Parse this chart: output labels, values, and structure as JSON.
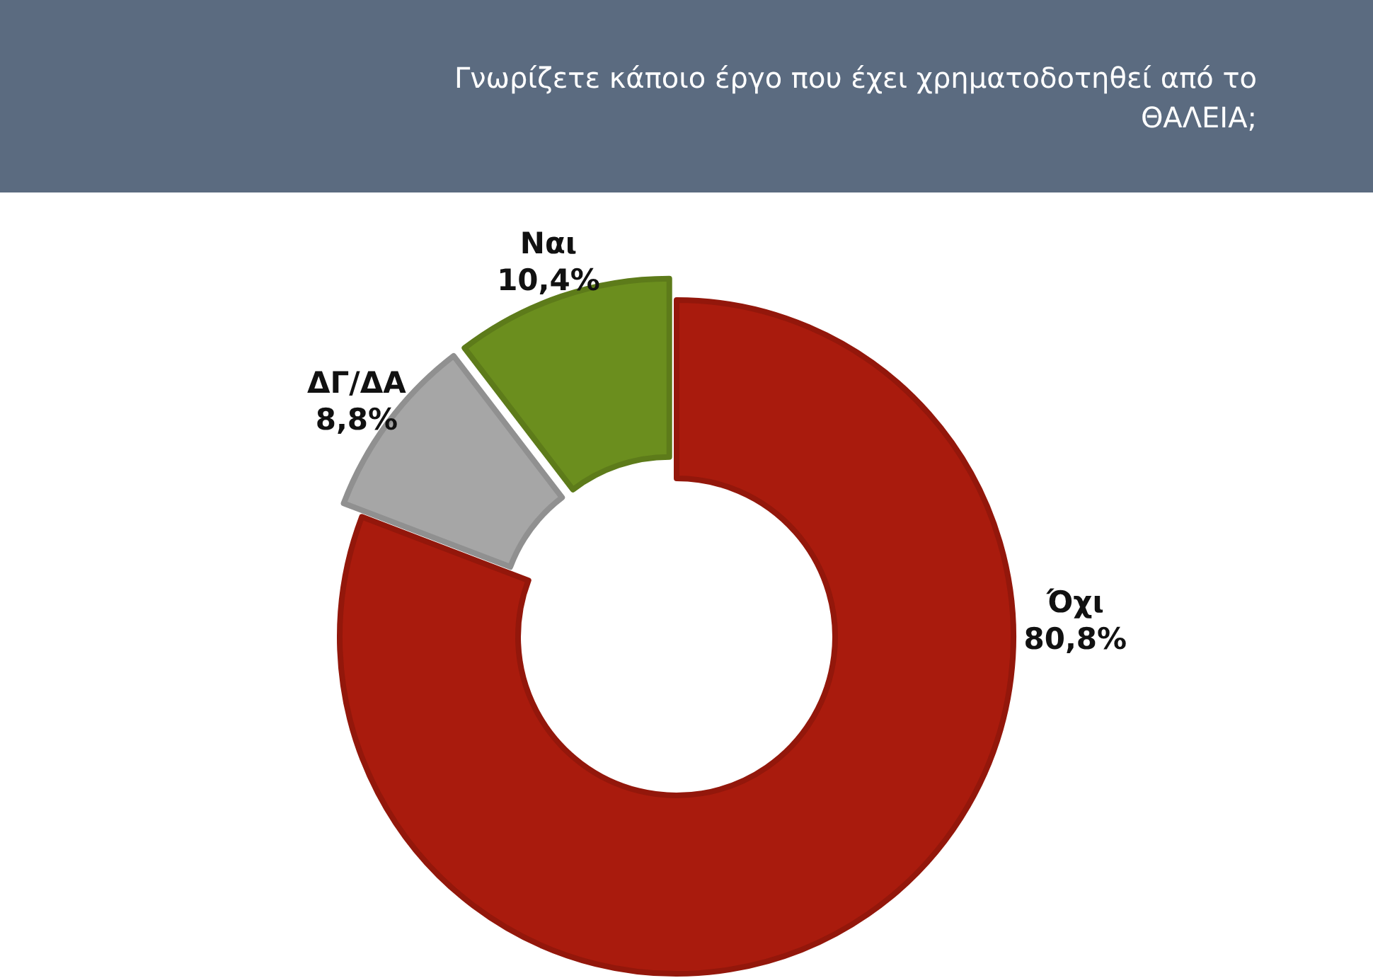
{
  "chart_data": {
    "type": "donut",
    "title": "Γνωρίζετε κάποιο έργο που έχει χρηματοδοτηθεί από το ΘΑΛΕΙΑ;",
    "categories": [
      "Όχι",
      "ΔΓ/ΔΑ",
      "Ναι"
    ],
    "values": [
      80.8,
      8.8,
      10.4
    ],
    "colors": [
      "#a91b0d",
      "#a6a6a6",
      "#6b8e1e"
    ],
    "value_labels": [
      "80,8%",
      "8,8%",
      "10,4%"
    ]
  }
}
